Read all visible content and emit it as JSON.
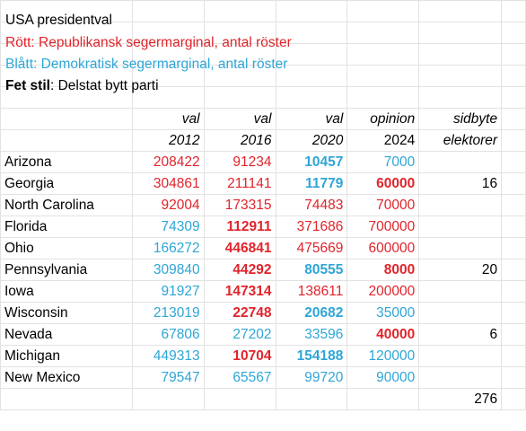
{
  "legend": {
    "title": "USA presidentval",
    "red": "Rött: Republikansk segermarginal, antal röster",
    "blue": "Blått: Demokratisk segermarginal, antal röster",
    "bold_label": "Fet stil",
    "bold_text": ": Delstat bytt parti"
  },
  "colors": {
    "republican": "#e0242b",
    "democrat": "#2ea6d6",
    "grid": "#e2e2e2"
  },
  "header": {
    "row1": [
      "val",
      "val",
      "val",
      "opinion",
      "sidbyte"
    ],
    "row2": [
      "2012",
      "2016",
      "2020",
      "2024",
      "elektorer"
    ]
  },
  "rows": [
    {
      "state": "Arizona",
      "v2012": "208422",
      "v2016": "91234",
      "v2020": "10457",
      "v2024": "7000",
      "electors": ""
    },
    {
      "state": "Georgia",
      "v2012": "304861",
      "v2016": "211141",
      "v2020": "11779",
      "v2024": "60000",
      "electors": "16"
    },
    {
      "state": "North Carolina",
      "v2012": "92004",
      "v2016": "173315",
      "v2020": "74483",
      "v2024": "70000",
      "electors": ""
    },
    {
      "state": "Florida",
      "v2012": "74309",
      "v2016": "112911",
      "v2020": "371686",
      "v2024": "700000",
      "electors": ""
    },
    {
      "state": "Ohio",
      "v2012": "166272",
      "v2016": "446841",
      "v2020": "475669",
      "v2024": "600000",
      "electors": ""
    },
    {
      "state": "Pennsylvania",
      "v2012": "309840",
      "v2016": "44292",
      "v2020": "80555",
      "v2024": "8000",
      "electors": "20"
    },
    {
      "state": "Iowa",
      "v2012": "91927",
      "v2016": "147314",
      "v2020": "138611",
      "v2024": "200000",
      "electors": ""
    },
    {
      "state": "Wisconsin",
      "v2012": "213019",
      "v2016": "22748",
      "v2020": "20682",
      "v2024": "35000",
      "electors": ""
    },
    {
      "state": "Nevada",
      "v2012": "67806",
      "v2016": "27202",
      "v2020": "33596",
      "v2024": "40000",
      "electors": "6"
    },
    {
      "state": "Michigan",
      "v2012": "449313",
      "v2016": "10704",
      "v2020": "154188",
      "v2024": "120000",
      "electors": ""
    },
    {
      "state": "New Mexico",
      "v2012": "79547",
      "v2016": "65567",
      "v2020": "99720",
      "v2024": "90000",
      "electors": ""
    }
  ],
  "total": "276"
}
